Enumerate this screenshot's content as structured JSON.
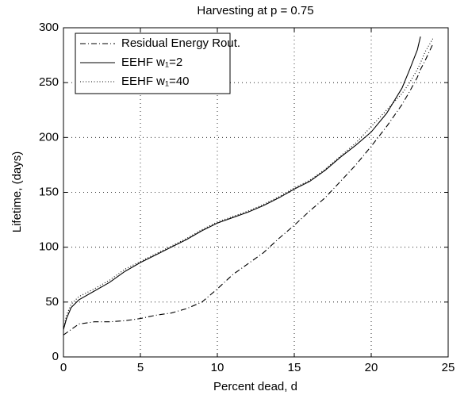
{
  "chart_data": {
    "type": "line",
    "title": "Harvesting at p = 0.75",
    "x_label": "Percent dead, d",
    "y_label": "Lifetime, (days)",
    "x": [
      0,
      0.2,
      0.5,
      1,
      2,
      3,
      4,
      5,
      6,
      7,
      8,
      9,
      10,
      11,
      12,
      13,
      14,
      15,
      16,
      17,
      18,
      19,
      20,
      21,
      22,
      22.5,
      23,
      23.2,
      23.5,
      24
    ],
    "series": [
      {
        "name": "Residual Energy Rout.",
        "color": "#000000",
        "dash": "dashdot",
        "values": [
          20,
          22,
          25,
          30,
          32,
          32,
          33,
          35,
          38,
          40,
          44,
          50,
          62,
          75,
          85,
          95,
          108,
          120,
          133,
          145,
          160,
          175,
          192,
          210,
          230,
          242,
          255,
          262,
          270,
          285
        ]
      },
      {
        "name": "EEHF w₁=2",
        "color": "#000000",
        "dash": "solid",
        "values": [
          25,
          35,
          45,
          52,
          60,
          68,
          78,
          86,
          93,
          100,
          107,
          115,
          122,
          127,
          132,
          138,
          145,
          153,
          160,
          170,
          182,
          193,
          205,
          222,
          245,
          262,
          280,
          292,
          null,
          null
        ]
      },
      {
        "name": "EEHF w₁=40",
        "color": "#000000",
        "dash": "dotted",
        "values": [
          25,
          38,
          48,
          55,
          62,
          70,
          80,
          87,
          94,
          101,
          108,
          116,
          123,
          128,
          133,
          139,
          146,
          154,
          161,
          171,
          183,
          195,
          210,
          225,
          240,
          250,
          262,
          268,
          278,
          290
        ]
      }
    ],
    "xlim": [
      0,
      25
    ],
    "ylim": [
      0,
      300
    ],
    "xticks": [
      0,
      5,
      10,
      15,
      20,
      25
    ],
    "yticks": [
      0,
      50,
      100,
      150,
      200,
      250,
      300
    ],
    "grid": true,
    "legend": "upper left"
  }
}
